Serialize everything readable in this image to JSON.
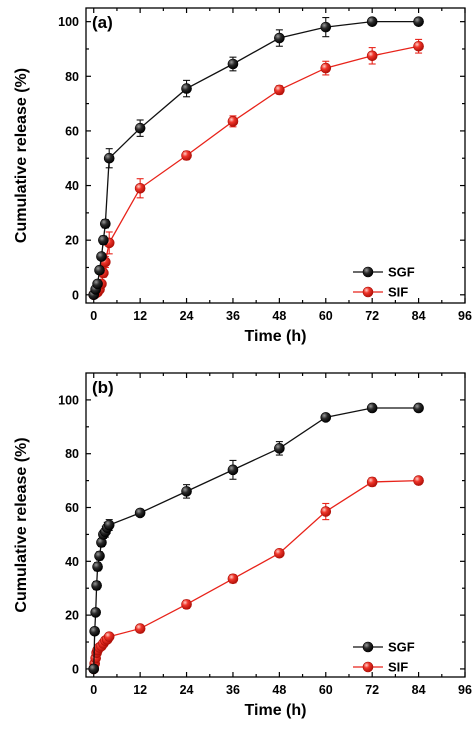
{
  "chart_data": [
    {
      "type": "line",
      "panel_label": "(a)",
      "xlabel": "Time (h)",
      "ylabel": "Cumulative release (%)",
      "xlim": [
        -2,
        96
      ],
      "ylim": [
        -3,
        105
      ],
      "xticks": [
        0,
        12,
        24,
        36,
        48,
        60,
        72,
        84,
        96
      ],
      "yticks": [
        0,
        20,
        40,
        60,
        80,
        100
      ],
      "legend_position": "bottom-right",
      "series": [
        {
          "name": "SGF",
          "color": "#111111",
          "x": [
            0,
            0.5,
            1,
            1.5,
            2,
            2.5,
            3,
            4,
            12,
            24,
            36,
            48,
            60,
            72,
            84
          ],
          "y": [
            0,
            2,
            4,
            9,
            14,
            20,
            26,
            50,
            61,
            75.5,
            84.5,
            94,
            98,
            100,
            100
          ],
          "err": [
            0,
            0.5,
            0.8,
            1,
            1.2,
            1.5,
            1.5,
            3.5,
            3,
            3,
            2.5,
            3,
            3.5,
            1,
            1
          ]
        },
        {
          "name": "SIF",
          "color": "#e8231a",
          "x": [
            0,
            0.5,
            1,
            1.5,
            2,
            2.5,
            3,
            4,
            12,
            24,
            36,
            48,
            60,
            72,
            84
          ],
          "y": [
            0,
            0.5,
            1,
            2,
            4,
            8,
            12,
            19,
            39,
            51,
            63.5,
            75,
            83,
            87.5,
            91
          ],
          "err": [
            0,
            0.3,
            0.5,
            0.8,
            1,
            1.5,
            2,
            4,
            3.5,
            1.5,
            2,
            1.5,
            2.5,
            3,
            2.5
          ]
        }
      ]
    },
    {
      "type": "line",
      "panel_label": "(b)",
      "xlabel": "Time (h)",
      "ylabel": "Cumulative release (%)",
      "xlim": [
        -2,
        96
      ],
      "ylim": [
        -3,
        110
      ],
      "xticks": [
        0,
        12,
        24,
        36,
        48,
        60,
        72,
        84,
        96
      ],
      "yticks": [
        0,
        20,
        40,
        60,
        80,
        100
      ],
      "legend_position": "bottom-right",
      "series": [
        {
          "name": "SGF",
          "color": "#111111",
          "x": [
            0,
            0.25,
            0.5,
            0.75,
            1,
            1.5,
            2,
            2.5,
            3,
            3.5,
            4,
            12,
            24,
            36,
            48,
            60,
            72,
            84
          ],
          "y": [
            0,
            14,
            21,
            31,
            38,
            42,
            47,
            50,
            51,
            52.5,
            53.5,
            58,
            66,
            74,
            82,
            93.5,
            97,
            97
          ],
          "err": [
            0,
            1,
            1,
            1.5,
            1.5,
            1.5,
            1.5,
            1.5,
            2,
            2,
            2,
            1,
            2.5,
            3.5,
            2.5,
            1,
            1,
            0.5
          ]
        },
        {
          "name": "SIF",
          "color": "#e8231a",
          "x": [
            0,
            0.25,
            0.5,
            0.75,
            1,
            1.5,
            2,
            2.5,
            3,
            3.5,
            4,
            12,
            24,
            36,
            48,
            60,
            72,
            84
          ],
          "y": [
            0,
            2,
            4,
            6,
            7,
            8,
            8.5,
            9.5,
            10.5,
            11,
            12,
            15,
            24,
            33.5,
            43,
            58.5,
            69.5,
            70
          ],
          "err": [
            0,
            0.5,
            0.5,
            0.5,
            0.5,
            0.5,
            0.5,
            0.5,
            0.5,
            0.5,
            0.5,
            0.5,
            1.5,
            1.5,
            1,
            3,
            1.5,
            1
          ]
        }
      ]
    }
  ]
}
